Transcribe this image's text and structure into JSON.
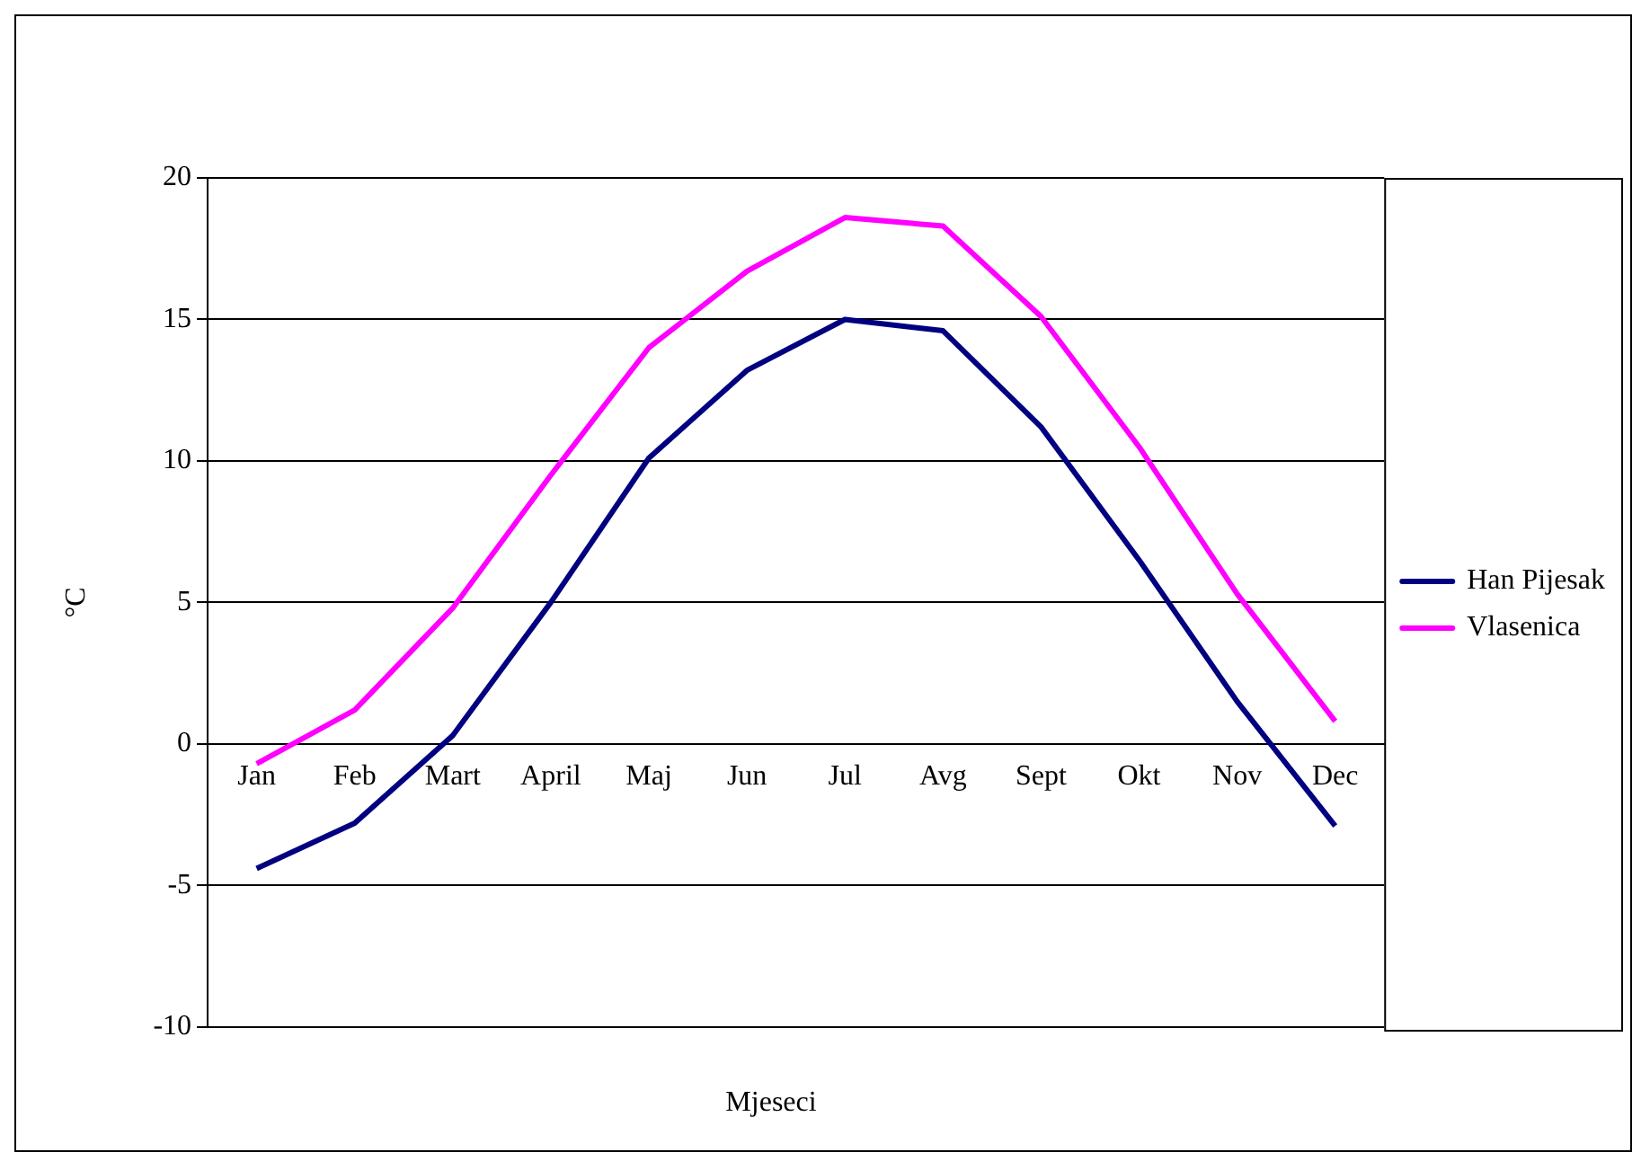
{
  "chart_data": {
    "type": "line",
    "xlabel": "Mjeseci",
    "ylabel": "°C",
    "categories": [
      "Jan",
      "Feb",
      "Mart",
      "April",
      "Maj",
      "Jun",
      "Jul",
      "Avg",
      "Sept",
      "Okt",
      "Nov",
      "Dec"
    ],
    "series": [
      {
        "name": "Han Pijesak",
        "color": "#000080",
        "values": [
          -4.4,
          -2.8,
          0.3,
          5.0,
          10.1,
          13.2,
          15.0,
          14.6,
          11.2,
          6.5,
          1.5,
          -2.9
        ]
      },
      {
        "name": "Vlasenica",
        "color": "#ff00ff",
        "values": [
          -0.7,
          1.2,
          4.8,
          9.5,
          14.0,
          16.7,
          18.6,
          18.3,
          15.1,
          10.5,
          5.3,
          0.8
        ]
      }
    ],
    "ylim": [
      -10,
      20
    ],
    "yticks": [
      -10,
      -5,
      0,
      5,
      10,
      15,
      20
    ],
    "grid": "y",
    "legend": "right",
    "marker": "none",
    "line_style": "solid"
  }
}
